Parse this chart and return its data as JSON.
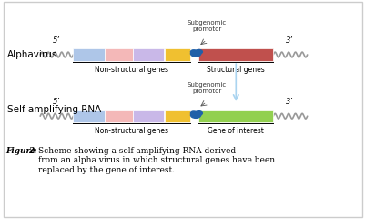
{
  "fig_width": 4.02,
  "fig_height": 2.4,
  "dpi": 100,
  "bg_color": "#ffffff",
  "border_color": "#cccccc",
  "alphavirus_label": "Alphavirus",
  "sarns_label": "Self-amplifying RNA",
  "five_prime": "5’",
  "three_prime": "3’",
  "subgenomic_label": "Subgenomic\npromotor",
  "nonstructural_label": "Non-structural genes",
  "structural_label": "Structural genes",
  "gene_interest_label": "Gene of interest",
  "figure_caption": "Figure  2: Scheme showing a self-amplifying RNA derived\nfrom an alpha virus in which structural genes have been\nreplaced by the gene of interest.",
  "colors": {
    "blue_box": "#aec6e8",
    "pink_box": "#f4b8b8",
    "lavender_box": "#c9b8e8",
    "yellow_box": "#f0c030",
    "red_box": "#c0504d",
    "green_box": "#92d050",
    "coil_color": "#b0b0b0",
    "arrow_color": "#aad4f0",
    "promoter_color": "#3060a0"
  }
}
